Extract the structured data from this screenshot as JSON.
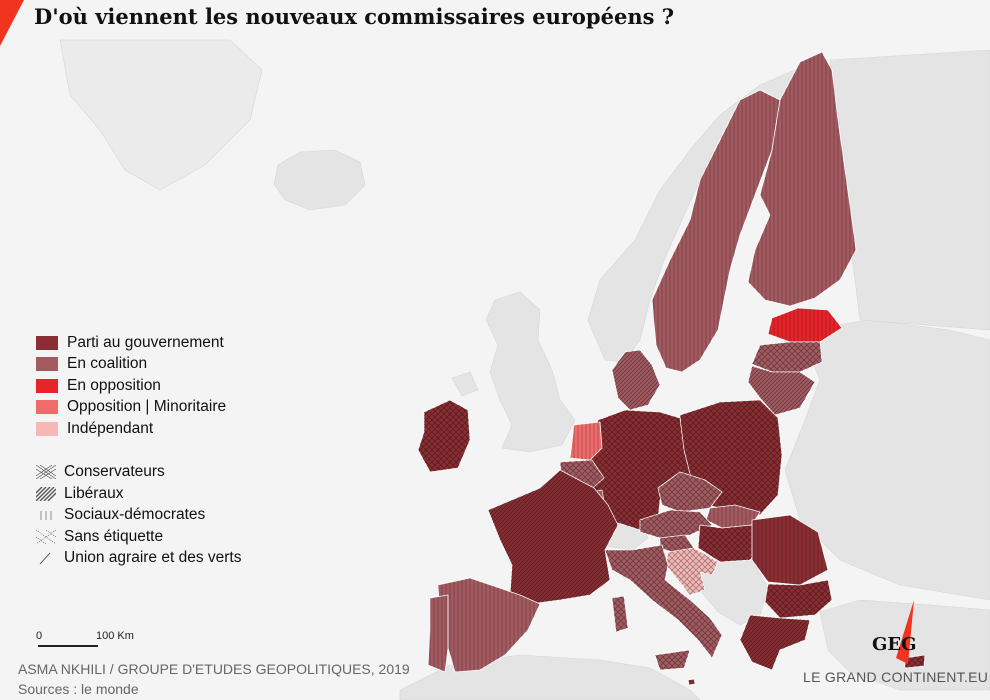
{
  "title": "D'où viennent les nouveaux commissaires européens ?",
  "colors": {
    "gouvernement": "#8a2e33",
    "coalition": "#a35a61",
    "opposition": "#e8242b",
    "minoritaire": "#f06b6b",
    "independant": "#f6b8b6",
    "land": "#e6e6e6",
    "sea": "#f4f4f4"
  },
  "legend_status": [
    {
      "label": "Parti au gouvernement",
      "key": "gouvernement"
    },
    {
      "label": "En coalition",
      "key": "coalition"
    },
    {
      "label": "En opposition",
      "key": "opposition"
    },
    {
      "label": "Opposition | Minoritaire",
      "key": "minoritaire"
    },
    {
      "label": "Indépendant",
      "key": "independant"
    }
  ],
  "legend_parties": [
    {
      "label": "Conservateurs",
      "pattern": "crosshatch"
    },
    {
      "label": "Libéraux",
      "pattern": "diagonal"
    },
    {
      "label": "Sociaux-démocrates",
      "pattern": "vertical"
    },
    {
      "label": "Sans étiquette",
      "pattern": "dotted-cross"
    },
    {
      "label": "Union agraire et des verts",
      "pattern": "single-slash"
    }
  ],
  "scale": {
    "start": "0",
    "end": "100 Km"
  },
  "credit": {
    "author": "ASMA NKHILI / GROUPE D'ETUDES GEOPOLITIQUES, 2019",
    "source": "Sources : le monde"
  },
  "logo": {
    "text": "GEG",
    "site": "LE GRAND CONTINENT.EU"
  },
  "countries": [
    {
      "name": "Ireland",
      "status": "gouvernement",
      "pattern": "crosshatch"
    },
    {
      "name": "France",
      "status": "gouvernement",
      "pattern": "diagonal"
    },
    {
      "name": "Spain",
      "status": "coalition",
      "pattern": "vertical"
    },
    {
      "name": "Portugal",
      "status": "coalition",
      "pattern": "vertical"
    },
    {
      "name": "Netherlands",
      "status": "minoritaire",
      "pattern": "vertical"
    },
    {
      "name": "Belgium",
      "status": "coalition",
      "pattern": "crosshatch"
    },
    {
      "name": "Luxembourg",
      "status": "coalition",
      "pattern": "vertical"
    },
    {
      "name": "Germany",
      "status": "gouvernement",
      "pattern": "crosshatch"
    },
    {
      "name": "Denmark",
      "status": "coalition",
      "pattern": "diagonal"
    },
    {
      "name": "Sweden",
      "status": "coalition",
      "pattern": "vertical"
    },
    {
      "name": "Finland",
      "status": "coalition",
      "pattern": "vertical"
    },
    {
      "name": "Estonia",
      "status": "opposition",
      "pattern": "vertical"
    },
    {
      "name": "Latvia",
      "status": "coalition",
      "pattern": "crosshatch"
    },
    {
      "name": "Lithuania",
      "status": "coalition",
      "pattern": "diagonal"
    },
    {
      "name": "Poland",
      "status": "gouvernement",
      "pattern": "crosshatch"
    },
    {
      "name": "Czech Republic",
      "status": "coalition",
      "pattern": "crosshatch"
    },
    {
      "name": "Slovakia",
      "status": "coalition",
      "pattern": "vertical"
    },
    {
      "name": "Austria",
      "status": "coalition",
      "pattern": "crosshatch"
    },
    {
      "name": "Hungary",
      "status": "gouvernement",
      "pattern": "crosshatch"
    },
    {
      "name": "Slovenia",
      "status": "coalition",
      "pattern": "crosshatch"
    },
    {
      "name": "Croatia",
      "status": "independant",
      "pattern": "crosshatch"
    },
    {
      "name": "Italy",
      "status": "coalition",
      "pattern": "crosshatch"
    },
    {
      "name": "Romania",
      "status": "gouvernement",
      "pattern": "vertical"
    },
    {
      "name": "Bulgaria",
      "status": "gouvernement",
      "pattern": "crosshatch"
    },
    {
      "name": "Greece",
      "status": "gouvernement",
      "pattern": "diagonal"
    },
    {
      "name": "Malta",
      "status": "gouvernement",
      "pattern": "vertical"
    },
    {
      "name": "Cyprus",
      "status": "gouvernement",
      "pattern": "crosshatch"
    }
  ]
}
